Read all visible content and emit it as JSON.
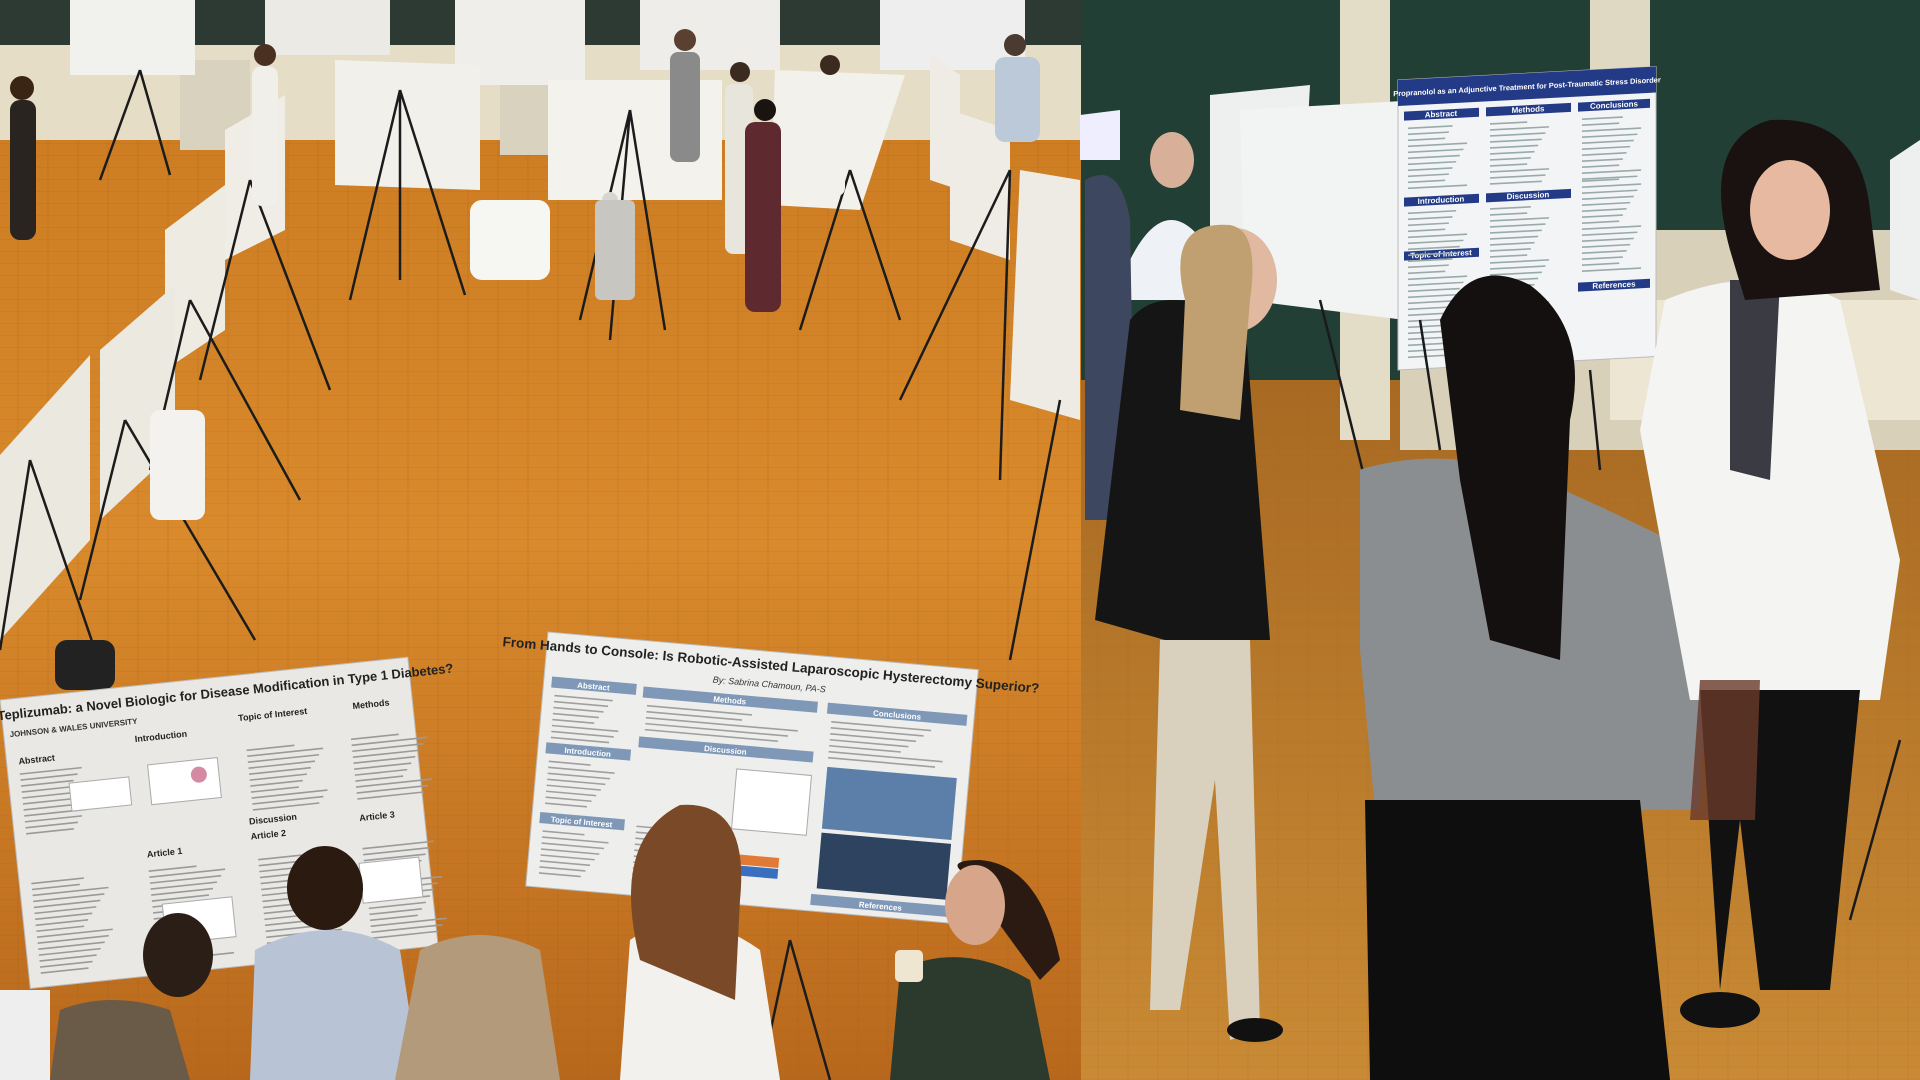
{
  "left_photo": {
    "poster_1": {
      "title": "Teplizumab: a Novel Biologic for Disease Modification in Type 1 Diabetes?",
      "logo": "JOHNSON & WALES UNIVERSITY",
      "sections": [
        "Abstract",
        "Introduction",
        "Topic of Interest",
        "Methods",
        "Discussion",
        "Article 1",
        "Article 2",
        "Article 3"
      ]
    },
    "poster_2": {
      "title": "From Hands to Console: Is Robotic-Assisted Laparoscopic Hysterectomy Superior?",
      "author": "By: Sabrina Chamoun, PA-S",
      "sections": [
        "Abstract",
        "Methods",
        "Conclusions",
        "Introduction",
        "Discussion",
        "Topic of Interest",
        "References"
      ]
    }
  },
  "right_photo": {
    "poster": {
      "title": "Propranolol as an Adjunctive Treatment for Post-Traumatic Stress Disorder",
      "sections": [
        "Abstract",
        "Methods",
        "Conclusions",
        "Introduction",
        "Discussion",
        "Topic of Interest",
        "References"
      ]
    }
  }
}
